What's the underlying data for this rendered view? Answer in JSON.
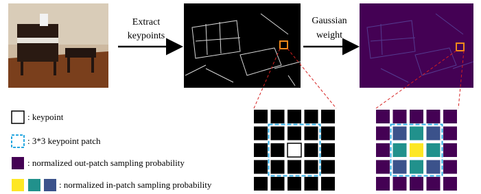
{
  "steps": [
    {
      "label_lines": [
        "Extract",
        "keypoints"
      ]
    },
    {
      "label_lines": [
        "Gaussian",
        "weight"
      ]
    }
  ],
  "legend": [
    {
      "text": ": keypoint"
    },
    {
      "text": ": 3*3 keypoint patch"
    },
    {
      "text": ": normalized out-patch sampling probability"
    },
    {
      "text": ": normalized in-patch sampling probability"
    }
  ]
}
